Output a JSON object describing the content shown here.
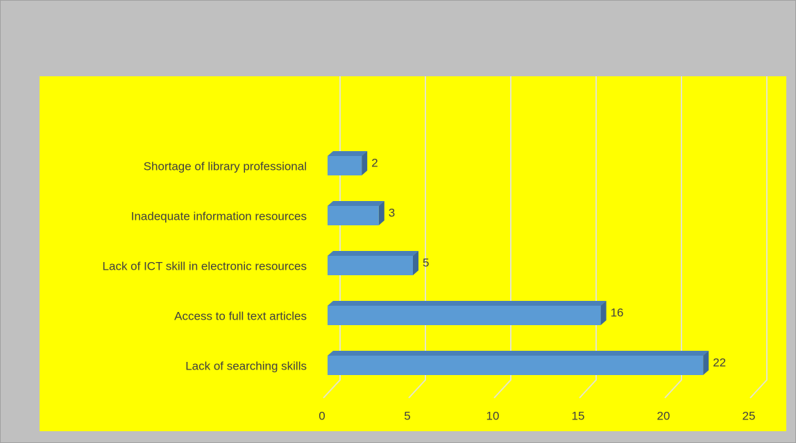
{
  "chart_data": {
    "type": "bar",
    "orientation": "horizontal",
    "categories": [
      "Shortage of library professional",
      "Inadequate information resources",
      "Lack of ICT skill in electronic resources",
      "Access to full text articles",
      "Lack of searching skills"
    ],
    "values": [
      2,
      3,
      5,
      16,
      22
    ],
    "color": "#5b9bd5",
    "xlim": [
      0,
      25
    ],
    "xticks": [
      0,
      5,
      10,
      15,
      20,
      25
    ],
    "grid": true
  }
}
